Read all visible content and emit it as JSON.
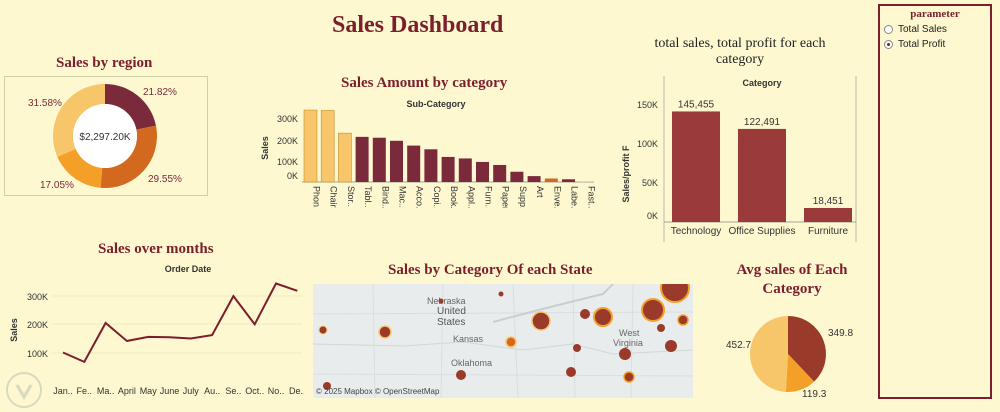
{
  "dashboard_title": "Sales Dashboard",
  "colors": {
    "dark": "#7a2a3a",
    "orange": "#d2691e",
    "amber": "#f4a028",
    "light": "#f7c66a",
    "bar_red": "#9a3a3a"
  },
  "region": {
    "title": "Sales by region",
    "center_label": "$2,297.20K",
    "labels": {
      "a": "21.82%",
      "b": "29.55%",
      "c": "17.05%",
      "d": "31.58%"
    }
  },
  "category_bars": {
    "title": "Sales Amount by category",
    "sub_title": "Sub-Category",
    "ylabel": "Sales",
    "yticks": [
      "300K",
      "200K",
      "100K",
      "0K"
    ]
  },
  "profit_bars": {
    "title_line1": "total sales, total profit for each",
    "title_line2": "category",
    "sub_title": "Category",
    "ylabel": "Sales/profit F",
    "yticks": [
      "150K",
      "100K",
      "50K",
      "0K"
    ]
  },
  "months": {
    "title": "Sales over months",
    "sub_title": "Order Date",
    "ylabel": "Sales",
    "yticks": [
      "300K",
      "200K",
      "100K"
    ]
  },
  "state_map": {
    "title": "Sales by Category Of each State",
    "attribution": "© 2025 Mapbox © OpenStreetMap",
    "labels": [
      "Nebraska",
      "United",
      "States",
      "Kansas",
      "Oklahoma",
      "West",
      "Virginia"
    ]
  },
  "avg": {
    "title_line1": "Avg sales of Each",
    "title_line2": "Category",
    "labels": [
      "349.8",
      "119.3",
      "452.7"
    ]
  },
  "parameter": {
    "title": "parameter",
    "options": [
      "Total Sales",
      "Total Profit"
    ],
    "selected": "Total Profit"
  },
  "chart_data": [
    {
      "type": "pie",
      "title": "Sales by region",
      "categories": [
        "21.82%",
        "29.55%",
        "17.05%",
        "31.58%"
      ],
      "values": [
        21.82,
        29.55,
        17.05,
        31.58
      ]
    },
    {
      "type": "bar",
      "title": "Sales Amount by category",
      "xlabel": "Sub-Category",
      "ylabel": "Sales",
      "categories": [
        "Phon..",
        "Chairs",
        "Stor..",
        "Tabl..",
        "Bind..",
        "Mac..",
        "Acco..",
        "Copi..",
        "Book..",
        "Appl..",
        "Furn..",
        "Paper",
        "Supp..",
        "Art",
        "Enve..",
        "Labe..",
        "Fast.."
      ],
      "values": [
        330000,
        328000,
        224000,
        207000,
        203000,
        189000,
        167000,
        150000,
        115000,
        108000,
        92000,
        78000,
        47000,
        27000,
        16000,
        12500,
        3000
      ],
      "ylim": [
        0,
        350000
      ]
    },
    {
      "type": "bar",
      "title": "total sales, total profit for each category",
      "xlabel": "Category",
      "ylabel": "Sales/profit F",
      "categories": [
        "Technology",
        "Office Supplies",
        "Furniture"
      ],
      "values": [
        145455,
        122491,
        18451
      ],
      "data_labels": [
        "145,455",
        "122,491",
        "18,451"
      ],
      "ylim": [
        0,
        160000
      ]
    },
    {
      "type": "line",
      "title": "Sales over months",
      "xlabel": "Order Date",
      "ylabel": "Sales",
      "x": [
        "Jan..",
        "Fe..",
        "Ma..",
        "April",
        "May",
        "June",
        "July",
        "Au..",
        "Se..",
        "Oct..",
        "No..",
        "De.."
      ],
      "values": [
        95000,
        60000,
        205000,
        138000,
        153000,
        152000,
        147000,
        160000,
        305000,
        200000,
        352000,
        325000
      ],
      "ylim": [
        0,
        380000
      ]
    },
    {
      "type": "pie",
      "title": "Avg sales of Each Category",
      "categories": [
        "349.8",
        "119.3",
        "452.7"
      ],
      "values": [
        349.8,
        119.3,
        452.7
      ]
    }
  ]
}
